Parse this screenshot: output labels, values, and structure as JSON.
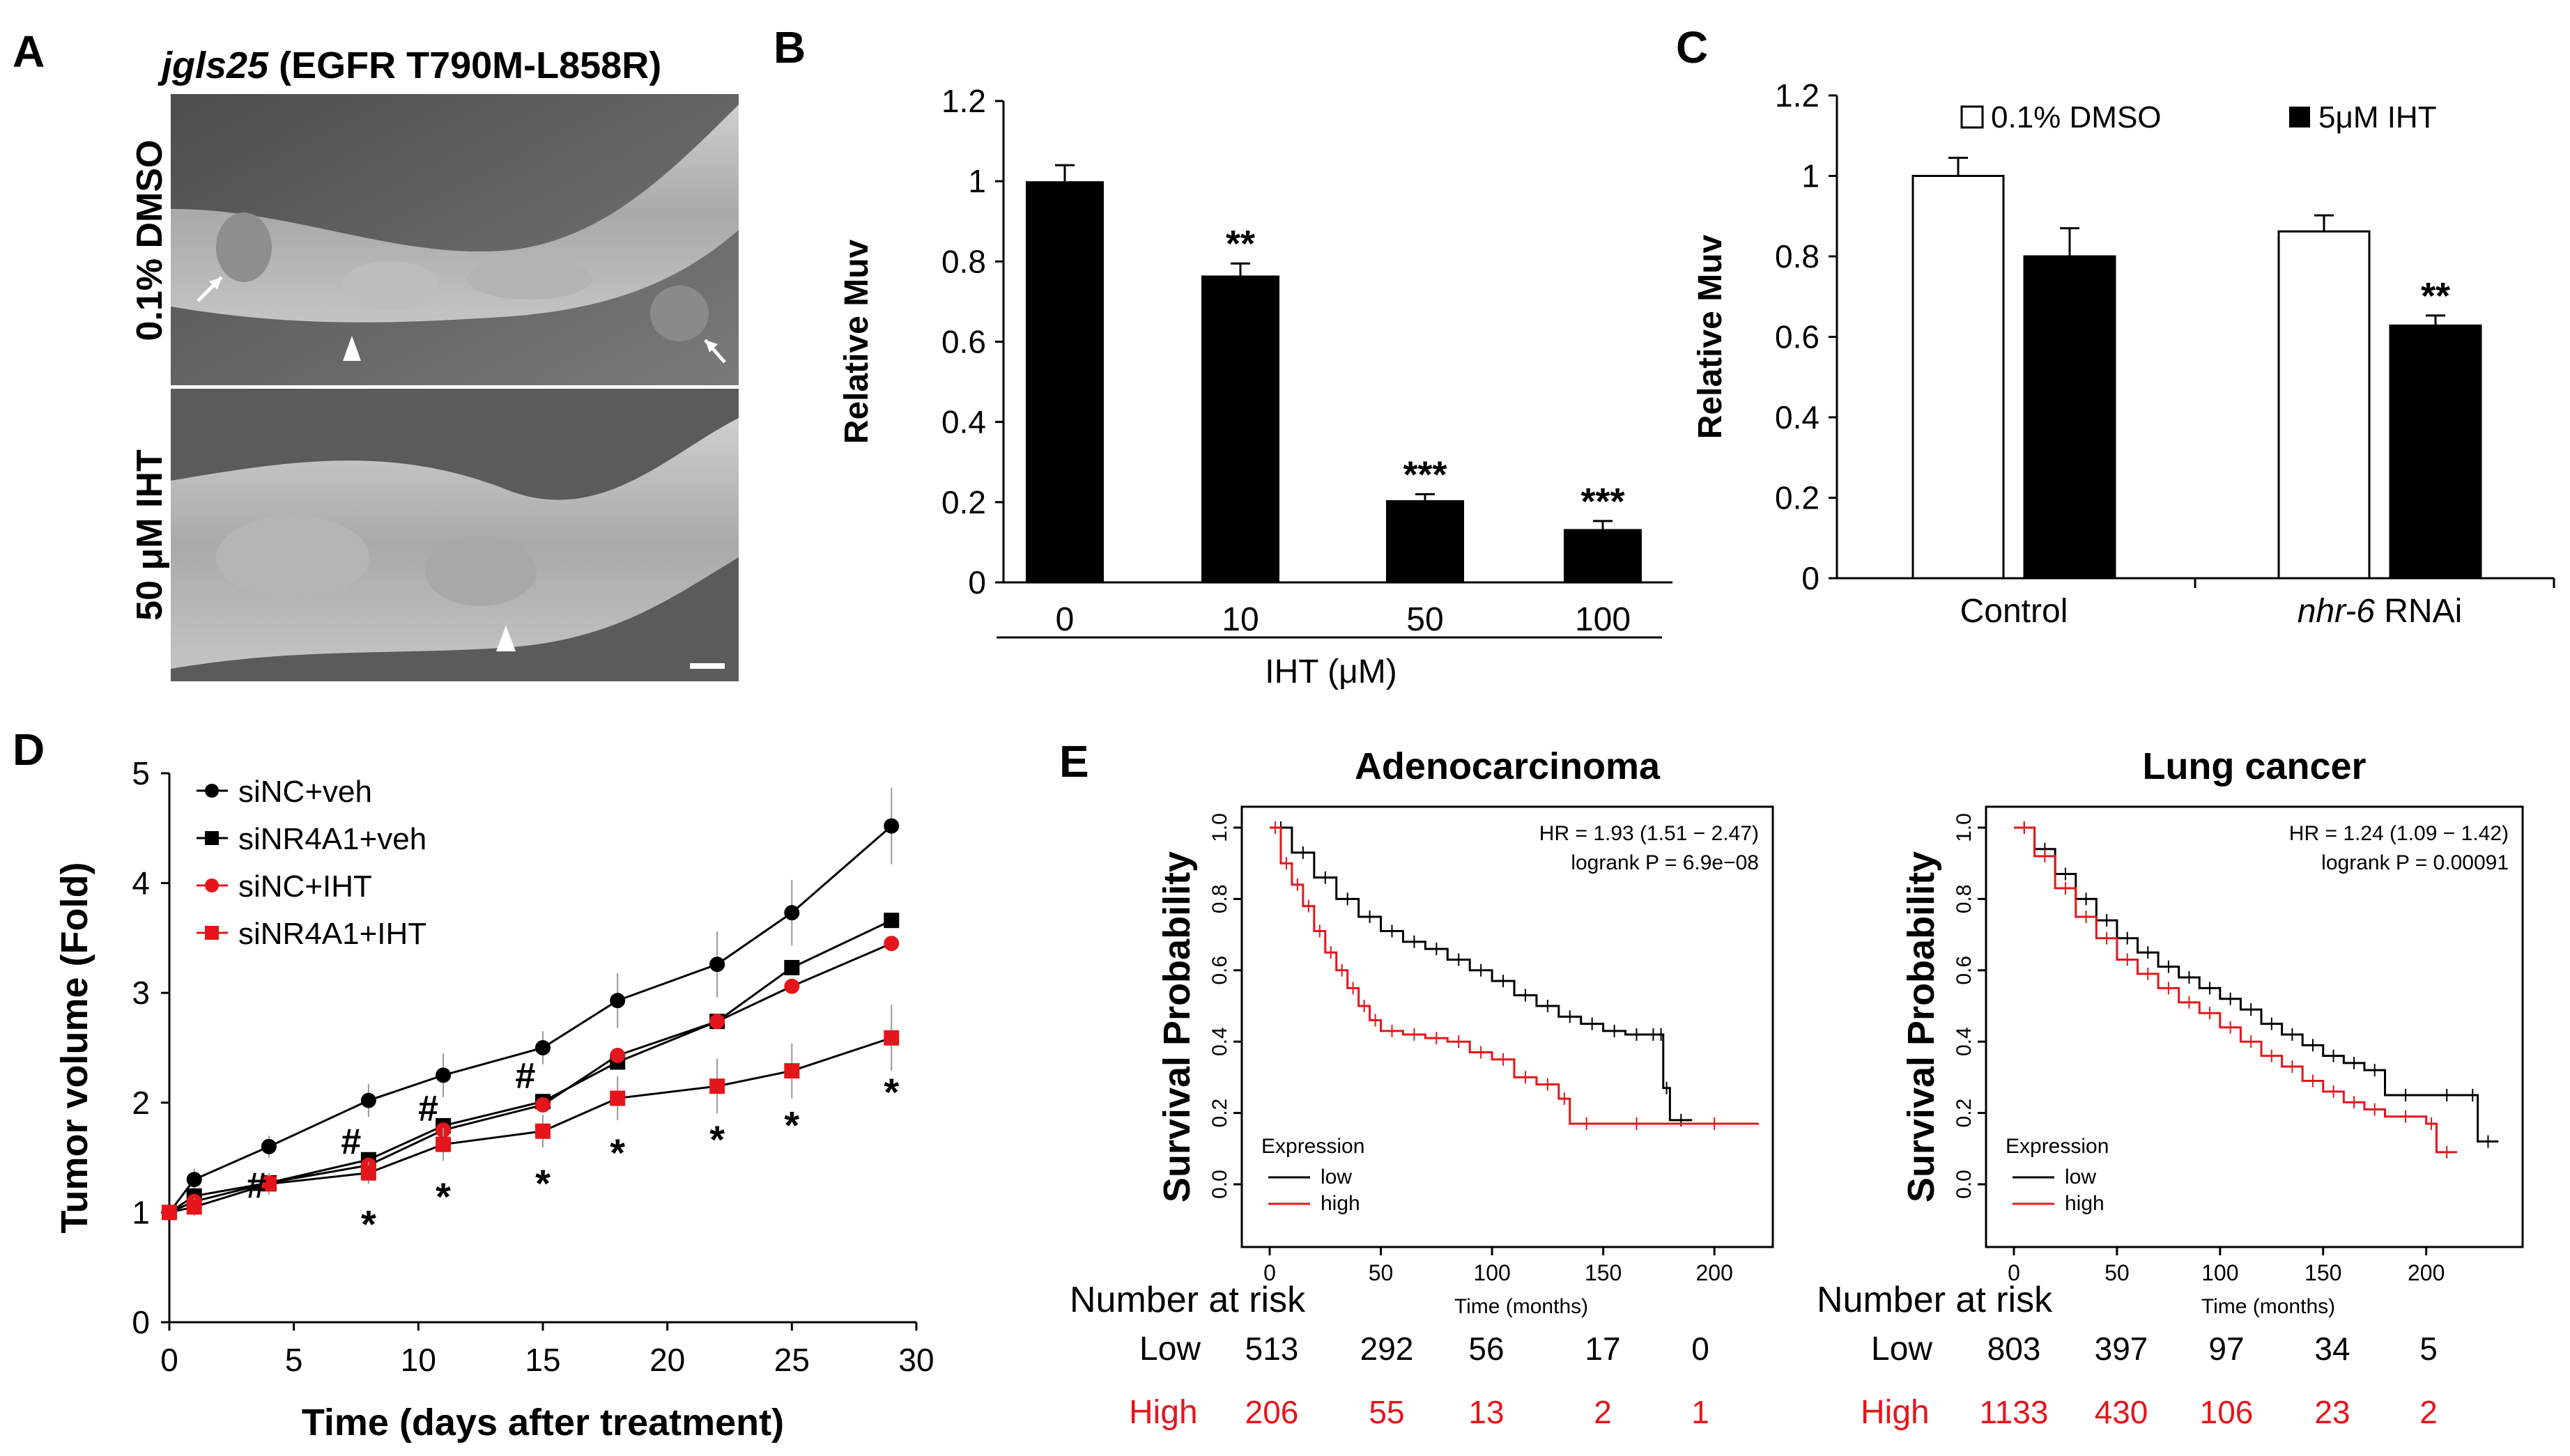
{
  "panels": {
    "A": {
      "letter": "A",
      "title_italic": "jgls25",
      "title_rest": " (EGFR T790M-L858R)",
      "top_label": "0.1% DMSO",
      "bottom_label": "50 μM IHT"
    },
    "B": {
      "letter": "B"
    },
    "C": {
      "letter": "C",
      "legend_open": "0.1% DMSO",
      "legend_filled": "5μM IHT",
      "group_control": "Control",
      "group_rnai_italic": "nhr-6",
      "group_rnai_rest": " RNAi"
    },
    "D": {
      "letter": "D"
    },
    "E": {
      "letter": "E",
      "number_at_risk_label": "Number at risk",
      "row_low": "Low",
      "row_high": "High"
    }
  },
  "chart_data": [
    {
      "id": "B",
      "type": "bar",
      "title": "",
      "xlabel": "IHT (μM)",
      "ylabel": "Relative Muv",
      "categories": [
        "0",
        "10",
        "50",
        "100"
      ],
      "values": [
        1.0,
        0.765,
        0.205,
        0.133
      ],
      "errors": [
        0.04,
        0.03,
        0.015,
        0.02
      ],
      "significance": [
        "",
        "**",
        "***",
        "***"
      ],
      "ylim": [
        0,
        1.2
      ],
      "yticks": [
        "0",
        "0.2",
        "0.4",
        "0.6",
        "0.8",
        "1",
        "1.2"
      ]
    },
    {
      "id": "C",
      "type": "bar",
      "title": "",
      "xlabel": "",
      "ylabel": "Relative Muv",
      "categories": [
        "Control",
        "nhr-6 RNAi"
      ],
      "series": [
        {
          "name": "0.1% DMSO",
          "color": "#ffffff",
          "values": [
            1.0,
            0.862
          ],
          "errors": [
            0.045,
            0.04
          ],
          "significance": [
            "",
            ""
          ]
        },
        {
          "name": "5μM IHT",
          "color": "#000000",
          "values": [
            0.8,
            0.628
          ],
          "errors": [
            0.07,
            0.025
          ],
          "significance": [
            "",
            "**"
          ]
        }
      ],
      "ylim": [
        0,
        1.2
      ],
      "yticks": [
        "0",
        "0.2",
        "0.4",
        "0.6",
        "0.8",
        "1",
        "1.2"
      ]
    },
    {
      "id": "D",
      "type": "line",
      "title": "",
      "xlabel": "Time (days after treatment)",
      "ylabel": "Tumor volume (Fold)",
      "x": [
        0,
        1,
        4,
        8,
        11,
        15,
        18,
        22,
        25,
        29
      ],
      "series": [
        {
          "name": "siNC+veh",
          "color": "#000000",
          "marker": "circle",
          "values": [
            1.0,
            1.3,
            1.6,
            2.02,
            2.25,
            2.5,
            2.93,
            3.26,
            3.73,
            4.52
          ],
          "errors": [
            0.05,
            0.1,
            0.1,
            0.15,
            0.2,
            0.15,
            0.25,
            0.3,
            0.3,
            0.35
          ]
        },
        {
          "name": "siNR4A1+veh",
          "color": "#000000",
          "marker": "square",
          "values": [
            1.0,
            1.15,
            1.27,
            1.48,
            1.79,
            2.01,
            2.37,
            2.74,
            3.23,
            3.66
          ]
        },
        {
          "name": "siNC+IHT",
          "color": "#e4161b",
          "marker": "circle",
          "values": [
            1.0,
            1.1,
            1.27,
            1.43,
            1.75,
            1.98,
            2.43,
            2.74,
            3.06,
            3.45
          ]
        },
        {
          "name": "siNR4A1+IHT",
          "color": "#e4161b",
          "marker": "square",
          "values": [
            1.0,
            1.05,
            1.26,
            1.36,
            1.62,
            1.74,
            2.04,
            2.15,
            2.29,
            2.59
          ],
          "errors": [
            0.05,
            0.08,
            0.1,
            0.1,
            0.15,
            0.15,
            0.2,
            0.25,
            0.25,
            0.3
          ]
        }
      ],
      "annotations": [
        {
          "text": "#",
          "x": 3.5,
          "y": 1.25
        },
        {
          "text": "#",
          "x": 7.3,
          "y": 1.65
        },
        {
          "text": "#",
          "x": 10.4,
          "y": 1.95
        },
        {
          "text": "#",
          "x": 14.3,
          "y": 2.25
        },
        {
          "text": "*",
          "x": 8,
          "y": 0.95
        },
        {
          "text": "*",
          "x": 11,
          "y": 1.2
        },
        {
          "text": "*",
          "x": 15,
          "y": 1.32
        },
        {
          "text": "*",
          "x": 18,
          "y": 1.6
        },
        {
          "text": "*",
          "x": 22,
          "y": 1.72
        },
        {
          "text": "*",
          "x": 25,
          "y": 1.85
        },
        {
          "text": "*",
          "x": 29,
          "y": 2.15
        }
      ],
      "xlim": [
        0,
        30
      ],
      "ylim": [
        0,
        5
      ],
      "xticks": [
        "0",
        "5",
        "10",
        "15",
        "20",
        "25",
        "30"
      ],
      "yticks": [
        "0",
        "1",
        "2",
        "3",
        "4",
        "5"
      ],
      "legend": "top-left"
    },
    {
      "id": "E1",
      "type": "line",
      "title": "Adenocarcinoma",
      "xlabel": "Time (months)",
      "ylabel": "Survival Probability",
      "stats_hr": "HR = 1.93 (1.51 − 2.47)",
      "stats_logrank": "logrank P = 6.9e−08",
      "legend_title": "Expression",
      "series": [
        {
          "name": "low",
          "color": "#000000",
          "x": [
            0,
            10,
            20,
            30,
            40,
            50,
            60,
            70,
            80,
            90,
            100,
            110,
            120,
            130,
            140,
            150,
            160,
            170,
            175,
            177,
            180,
            190
          ],
          "y": [
            1.0,
            0.93,
            0.86,
            0.8,
            0.75,
            0.71,
            0.68,
            0.66,
            0.63,
            0.6,
            0.57,
            0.53,
            0.5,
            0.47,
            0.45,
            0.43,
            0.42,
            0.42,
            0.42,
            0.27,
            0.18,
            0.18
          ]
        },
        {
          "name": "high",
          "color": "#e4161b",
          "x": [
            0,
            5,
            10,
            15,
            20,
            25,
            30,
            35,
            40,
            45,
            50,
            60,
            70,
            80,
            90,
            100,
            110,
            120,
            130,
            135,
            150,
            180,
            220
          ],
          "y": [
            1.0,
            0.9,
            0.84,
            0.78,
            0.71,
            0.65,
            0.6,
            0.55,
            0.5,
            0.46,
            0.43,
            0.42,
            0.41,
            0.4,
            0.37,
            0.35,
            0.3,
            0.28,
            0.24,
            0.17,
            0.17,
            0.17,
            0.17
          ]
        }
      ],
      "xlim": [
        0,
        220
      ],
      "ylim": [
        0,
        1
      ],
      "xticks": [
        "0",
        "50",
        "100",
        "150",
        "200"
      ],
      "yticks": [
        "0.0",
        "0.2",
        "0.4",
        "0.6",
        "0.8",
        "1.0"
      ],
      "risk_times": [
        0,
        50,
        100,
        150,
        200
      ],
      "risk_low": [
        "513",
        "292",
        "56",
        "17",
        "0"
      ],
      "risk_high": [
        "206",
        "55",
        "13",
        "2",
        "1"
      ]
    },
    {
      "id": "E2",
      "type": "line",
      "title": "Lung cancer",
      "xlabel": "Time (months)",
      "ylabel": "Survival Probability",
      "stats_hr": "HR = 1.24 (1.09 − 1.42)",
      "stats_logrank": "logrank P = 0.00091",
      "legend_title": "Expression",
      "series": [
        {
          "name": "low",
          "color": "#000000",
          "x": [
            0,
            10,
            20,
            30,
            40,
            50,
            60,
            70,
            80,
            90,
            100,
            110,
            120,
            130,
            140,
            150,
            160,
            170,
            180,
            200,
            220,
            225,
            235
          ],
          "y": [
            1.0,
            0.94,
            0.87,
            0.8,
            0.74,
            0.69,
            0.65,
            0.61,
            0.58,
            0.55,
            0.52,
            0.49,
            0.45,
            0.42,
            0.39,
            0.36,
            0.34,
            0.32,
            0.25,
            0.25,
            0.25,
            0.12,
            0.12
          ]
        },
        {
          "name": "high",
          "color": "#e4161b",
          "x": [
            0,
            10,
            20,
            30,
            40,
            50,
            60,
            70,
            80,
            90,
            100,
            110,
            120,
            130,
            140,
            150,
            160,
            170,
            180,
            200,
            205,
            215
          ],
          "y": [
            1.0,
            0.92,
            0.83,
            0.75,
            0.69,
            0.63,
            0.59,
            0.55,
            0.51,
            0.48,
            0.44,
            0.4,
            0.36,
            0.33,
            0.29,
            0.26,
            0.23,
            0.21,
            0.19,
            0.17,
            0.09,
            0.09
          ]
        }
      ],
      "xlim": [
        0,
        240
      ],
      "ylim": [
        0,
        1
      ],
      "xticks": [
        "0",
        "50",
        "100",
        "150",
        "200"
      ],
      "yticks": [
        "0.0",
        "0.2",
        "0.4",
        "0.6",
        "0.8",
        "1.0"
      ],
      "risk_times": [
        0,
        50,
        100,
        150,
        200
      ],
      "risk_low": [
        "803",
        "397",
        "97",
        "34",
        "5"
      ],
      "risk_high": [
        "1133",
        "430",
        "106",
        "23",
        "2"
      ]
    }
  ]
}
